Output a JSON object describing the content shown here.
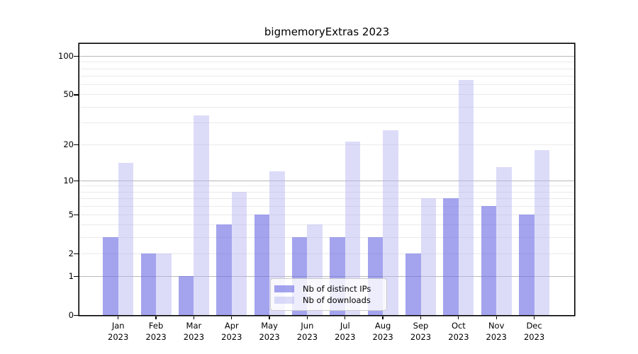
{
  "title": "bigmemoryExtras 2023",
  "chart_data": {
    "type": "bar",
    "title": "bigmemoryExtras 2023",
    "y_scale": "log1p",
    "x_categories": [
      {
        "month": "Jan",
        "year": "2023"
      },
      {
        "month": "Feb",
        "year": "2023"
      },
      {
        "month": "Mar",
        "year": "2023"
      },
      {
        "month": "Apr",
        "year": "2023"
      },
      {
        "month": "May",
        "year": "2023"
      },
      {
        "month": "Jun",
        "year": "2023"
      },
      {
        "month": "Jul",
        "year": "2023"
      },
      {
        "month": "Aug",
        "year": "2023"
      },
      {
        "month": "Sep",
        "year": "2023"
      },
      {
        "month": "Oct",
        "year": "2023"
      },
      {
        "month": "Nov",
        "year": "2023"
      },
      {
        "month": "Dec",
        "year": "2023"
      }
    ],
    "series": [
      {
        "name": "Nb of distinct IPs",
        "color": "rgba(108,108,228,0.62)",
        "solid_color": "#9d9deb",
        "values": [
          3,
          2,
          1,
          4,
          5,
          3,
          3,
          3,
          2,
          7,
          6,
          5
        ]
      },
      {
        "name": "Nb of downloads",
        "color": "rgba(178,178,241,0.45)",
        "solid_color": "#dbdbf8",
        "values": [
          14,
          2,
          34,
          8,
          12,
          4,
          21,
          26,
          7,
          65,
          13,
          18
        ]
      }
    ],
    "y_axis": {
      "tick_labels": [
        "100",
        "50",
        "20",
        "10",
        "5",
        "2",
        "1",
        "0"
      ],
      "tick_values": [
        100,
        50,
        20,
        10,
        5,
        2,
        1,
        0
      ],
      "ylim": [
        0,
        130
      ],
      "major_gridlines": [
        1,
        10,
        100
      ],
      "minor_gridlines": [
        2,
        3,
        4,
        5,
        6,
        7,
        8,
        9,
        20,
        30,
        40,
        50,
        60,
        70,
        80,
        90
      ]
    },
    "legend": {
      "position": "bottom-center",
      "entries": [
        "Nb of distinct IPs",
        "Nb of downloads"
      ]
    },
    "colors": {
      "spine": "#000000",
      "gridline_major": "#b9b9b9",
      "gridline_minor": "#eaeaea",
      "background": "#ffffff"
    }
  }
}
